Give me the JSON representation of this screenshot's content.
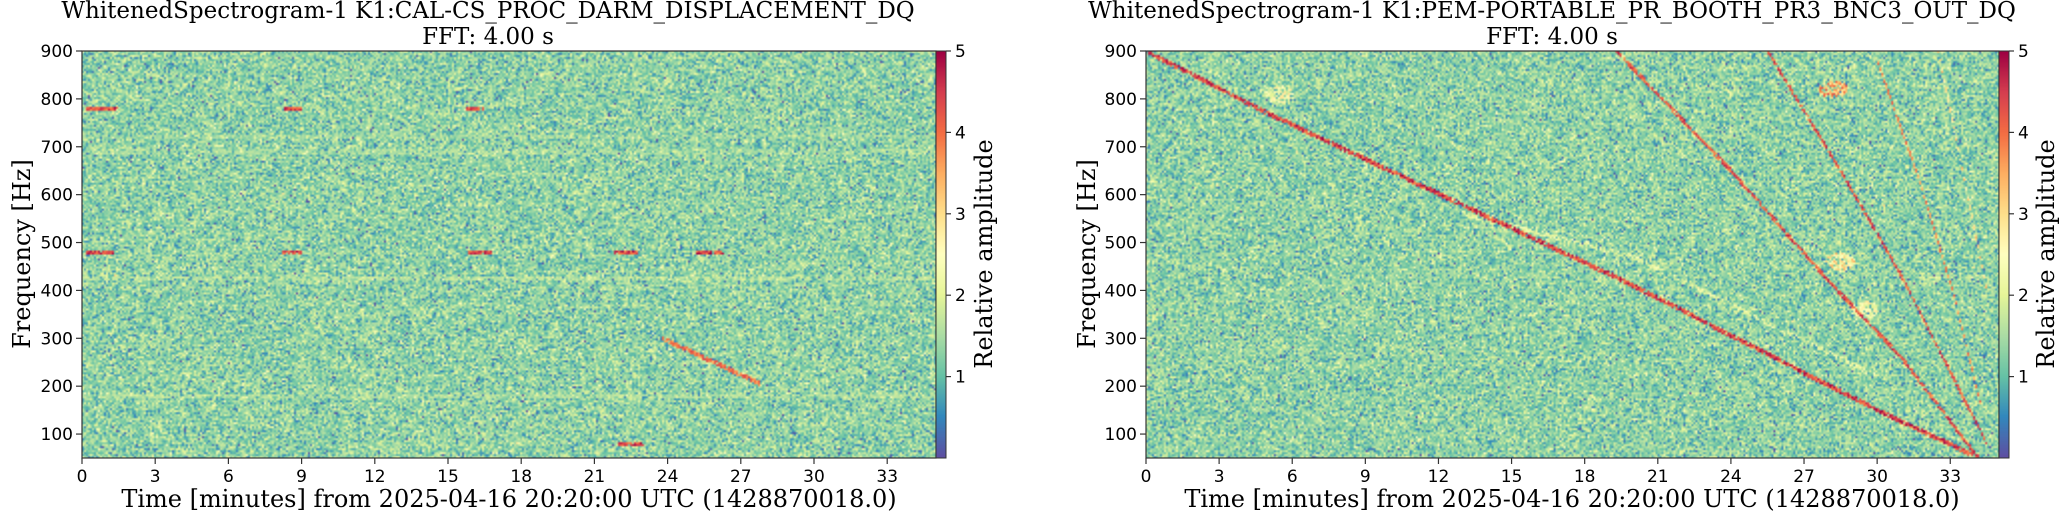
{
  "chart_data": [
    {
      "type": "heatmap",
      "title": "WhitenedSpectrogram-1 K1:CAL-CS_PROC_DARM_DISPLACEMENT_DQ",
      "subtitle": "FFT: 4.00 s",
      "xlabel": "Time [minutes] from 2025-04-16 20:20:00 UTC (1428870018.0)",
      "ylabel": "Frequency [Hz]",
      "xlim": [
        0,
        35
      ],
      "ylim": [
        50,
        900
      ],
      "xticks": [
        0,
        3,
        6,
        9,
        12,
        15,
        18,
        21,
        24,
        27,
        30,
        33
      ],
      "yticks": [
        100,
        200,
        300,
        400,
        500,
        600,
        700,
        800,
        900
      ],
      "colorbar": {
        "label": "Relative amplitude",
        "range": [
          0,
          5
        ],
        "ticks": [
          1,
          2,
          3,
          4,
          5
        ]
      },
      "background_level": 1.3,
      "features": [
        {
          "kind": "line",
          "points": [
            [
              0,
              180
            ],
            [
              35,
              178
            ]
          ],
          "amplitude": 1.8
        },
        {
          "kind": "line",
          "points": [
            [
              0,
              425
            ],
            [
              35,
              425
            ]
          ],
          "amplitude": 1.9
        },
        {
          "kind": "line",
          "points": [
            [
              0,
              690
            ],
            [
              35,
              690
            ]
          ],
          "amplitude": 1.7
        },
        {
          "kind": "line",
          "points": [
            [
              0,
              720
            ],
            [
              35,
              720
            ]
          ],
          "amplitude": 1.6
        },
        {
          "kind": "line",
          "points": [
            [
              23.8,
              300
            ],
            [
              27.8,
              205
            ]
          ],
          "amplitude": 4.5
        },
        {
          "kind": "segment",
          "points": [
            [
              0.2,
              780
            ],
            [
              1.5,
              780
            ]
          ],
          "amplitude": 5
        },
        {
          "kind": "segment",
          "points": [
            [
              8.3,
              780
            ],
            [
              9.0,
              780
            ]
          ],
          "amplitude": 5
        },
        {
          "kind": "segment",
          "points": [
            [
              15.7,
              780
            ],
            [
              16.5,
              780
            ]
          ],
          "amplitude": 5
        },
        {
          "kind": "segment",
          "points": [
            [
              0.2,
              478
            ],
            [
              1.3,
              478
            ]
          ],
          "amplitude": 5
        },
        {
          "kind": "segment",
          "points": [
            [
              8.2,
              478
            ],
            [
              9.0,
              478
            ]
          ],
          "amplitude": 5
        },
        {
          "kind": "segment",
          "points": [
            [
              15.8,
              478
            ],
            [
              16.8,
              478
            ]
          ],
          "amplitude": 5
        },
        {
          "kind": "segment",
          "points": [
            [
              21.8,
              478
            ],
            [
              22.8,
              478
            ]
          ],
          "amplitude": 5
        },
        {
          "kind": "segment",
          "points": [
            [
              25.2,
              478
            ],
            [
              26.3,
              478
            ]
          ],
          "amplitude": 5
        },
        {
          "kind": "segment",
          "points": [
            [
              22.0,
              80
            ],
            [
              23.0,
              80
            ]
          ],
          "amplitude": 5
        }
      ]
    },
    {
      "type": "heatmap",
      "title": "WhitenedSpectrogram-1 K1:PEM-PORTABLE_PR_BOOTH_PR3_BNC3_OUT_DQ",
      "subtitle": "FFT: 4.00 s",
      "xlabel": "Time [minutes] from 2025-04-16 20:20:00 UTC (1428870018.0)",
      "ylabel": "Frequency [Hz]",
      "xlim": [
        0,
        35
      ],
      "ylim": [
        50,
        900
      ],
      "xticks": [
        0,
        3,
        6,
        9,
        12,
        15,
        18,
        21,
        24,
        27,
        30,
        33
      ],
      "yticks": [
        100,
        200,
        300,
        400,
        500,
        600,
        700,
        800,
        900
      ],
      "colorbar": {
        "label": "Relative amplitude",
        "range": [
          0,
          5
        ],
        "ticks": [
          1,
          2,
          3,
          4,
          5
        ]
      },
      "background_level": 1.3,
      "features": [
        {
          "kind": "line",
          "points": [
            [
              0,
              900
            ],
            [
              5,
              770
            ],
            [
              10,
              650
            ],
            [
              15,
              530
            ],
            [
              20,
              410
            ],
            [
              25,
              280
            ],
            [
              30,
              150
            ],
            [
              34.2,
              50
            ]
          ],
          "amplitude": 5
        },
        {
          "kind": "line",
          "points": [
            [
              19.3,
              900
            ],
            [
              24,
              650
            ],
            [
              28,
              420
            ],
            [
              31,
              260
            ],
            [
              34,
              60
            ]
          ],
          "amplitude": 4.8
        },
        {
          "kind": "line",
          "points": [
            [
              25.5,
              900
            ],
            [
              28.5,
              650
            ],
            [
              31,
              430
            ],
            [
              33,
              230
            ],
            [
              34.5,
              80
            ]
          ],
          "amplitude": 4.8
        },
        {
          "kind": "line",
          "points": [
            [
              30,
              880
            ],
            [
              31.8,
              620
            ],
            [
              33.2,
              380
            ],
            [
              34.3,
              150
            ]
          ],
          "amplitude": 4.2
        },
        {
          "kind": "line",
          "points": [
            [
              32.5,
              900
            ],
            [
              33.5,
              650
            ],
            [
              34.5,
              400
            ]
          ],
          "amplitude": 3.5
        },
        {
          "kind": "line",
          "points": [
            [
              13,
              560
            ],
            [
              20,
              470
            ],
            [
              26,
              320
            ],
            [
              30,
              220
            ]
          ],
          "amplitude": 2.4
        },
        {
          "kind": "blob",
          "points": [
            [
              5.5,
              810
            ]
          ],
          "amplitude": 3.0
        },
        {
          "kind": "blob",
          "points": [
            [
              28.2,
              820
            ]
          ],
          "amplitude": 4.5
        },
        {
          "kind": "blob",
          "points": [
            [
              28.5,
              460
            ]
          ],
          "amplitude": 3.5
        },
        {
          "kind": "blob",
          "points": [
            [
              29.5,
              360
            ]
          ],
          "amplitude": 3.0
        }
      ]
    }
  ]
}
